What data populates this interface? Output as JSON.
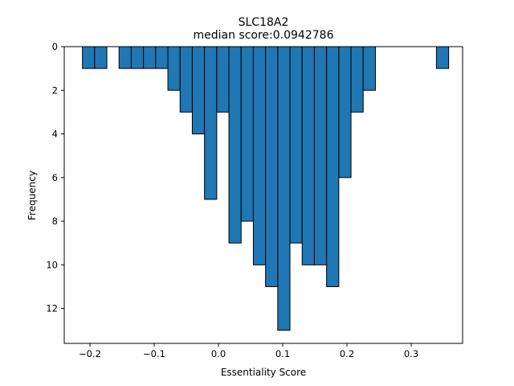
{
  "chart_data": {
    "type": "bar",
    "title": "SLC18A2",
    "subtitle": "median score:0.0942786",
    "xlabel": "Essentiality Score",
    "ylabel": "Frequency",
    "xlim": [
      -0.24,
      0.38
    ],
    "ylim": [
      0,
      13.6
    ],
    "y_inverted": true,
    "x_ticks": [
      -0.2,
      -0.1,
      0.0,
      0.1,
      0.2,
      0.3
    ],
    "x_tick_labels": [
      "−0.2",
      "−0.1",
      "0.0",
      "0.1",
      "0.2",
      "0.3"
    ],
    "y_ticks": [
      0,
      2,
      4,
      6,
      8,
      10,
      12
    ],
    "y_tick_labels": [
      "0",
      "2",
      "4",
      "6",
      "8",
      "10",
      "12"
    ],
    "bin_width": 0.019,
    "bin_starts": [
      -0.2117,
      -0.1927,
      -0.1547,
      -0.1357,
      -0.1167,
      -0.0977,
      -0.0787,
      -0.0597,
      -0.0407,
      -0.0217,
      -0.0027,
      0.0163,
      0.0353,
      0.0543,
      0.0733,
      0.0923,
      0.1113,
      0.1303,
      0.1493,
      0.1683,
      0.1873,
      0.2063,
      0.2253,
      0.3393
    ],
    "values": [
      1,
      1,
      1,
      1,
      1,
      1,
      2,
      3,
      4,
      7,
      3,
      9,
      8,
      10,
      11,
      13,
      9,
      10,
      10,
      11,
      6,
      3,
      2,
      1
    ],
    "bar_color": "#1f77b4",
    "edge_color": "#000000",
    "grid": false
  }
}
